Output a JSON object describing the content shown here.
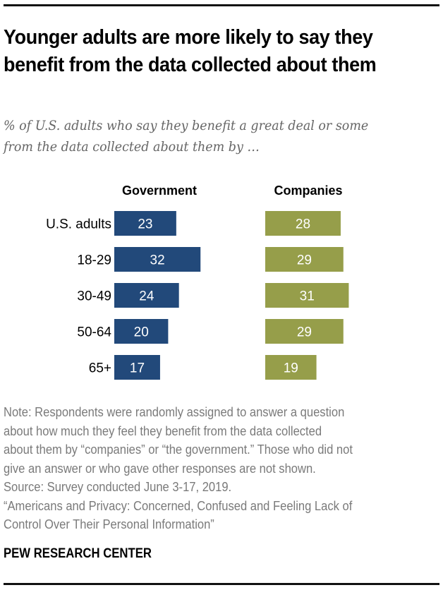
{
  "title": "Younger adults are more likely to say they benefit from the data collected about them",
  "subtitle": "% of U.S. adults who say they benefit a great deal or some from the data collected about them by …",
  "chart_data": {
    "type": "bar",
    "orientation": "horizontal",
    "title": "Younger adults are more likely to say they benefit from the data collected about them",
    "subtitle": "% of U.S. adults who say they benefit a great deal or some from the data collected about them by …",
    "categories": [
      "U.S. adults",
      "18-29",
      "30-49",
      "50-64",
      "65+"
    ],
    "series": [
      {
        "name": "Government",
        "values": [
          23,
          32,
          24,
          20,
          17
        ],
        "color": "#22497a"
      },
      {
        "name": "Companies",
        "values": [
          28,
          29,
          31,
          29,
          19
        ],
        "color": "#969e4a"
      }
    ],
    "xlabel": "",
    "ylabel": "",
    "xlim": [
      0,
      100
    ],
    "grid": false,
    "data_labels": true
  },
  "notes": [
    "Note: Respondents were randomly assigned to answer a question",
    "about how much they feel they benefit from the data collected",
    "about them by “companies” or “the government.” Those who did not",
    "give an answer or who gave other responses are not shown.",
    "Source: Survey conducted June 3-17, 2019.",
    "“Americans and Privacy: Concerned, Confused and Feeling Lack of",
    "Control Over Their Personal Information”"
  ],
  "brand": "PEW RESEARCH CENTER"
}
